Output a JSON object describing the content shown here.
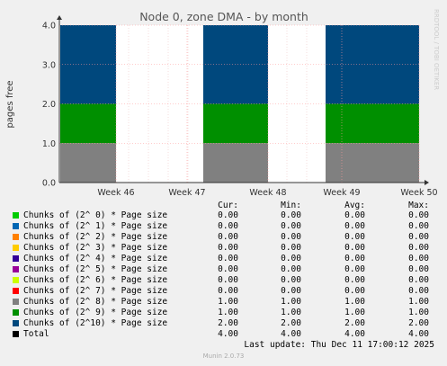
{
  "chart_data": {
    "type": "bar",
    "title": "Node 0, zone DMA - by month",
    "ylabel": "pages free",
    "ylim": [
      0,
      4
    ],
    "yticks": [
      "0.0",
      "1.0",
      "2.0",
      "3.0",
      "4.0"
    ],
    "xticks": [
      "Week 46",
      "Week 47",
      "Week 48",
      "Week 49",
      "Week 50"
    ],
    "grid": true,
    "stacked": true,
    "segments": [
      {
        "series": "Chunks of (2^ 8) * Page size",
        "values": [
          1,
          1,
          1
        ]
      },
      {
        "series": "Chunks of (2^ 9) * Page size",
        "values": [
          1,
          1,
          1
        ]
      },
      {
        "series": "Chunks of (2^10) * Page size",
        "values": [
          2,
          2,
          2
        ]
      }
    ]
  },
  "side_label": "RRDTOOL / TOBI OETIKER",
  "legend": {
    "headers": [
      "Cur:",
      "Min:",
      "Avg:",
      "Max:"
    ],
    "rows": [
      {
        "label": "Chunks of (2^ 0) * Page size",
        "color": "#00cc00",
        "cur": "0.00",
        "min": "0.00",
        "avg": "0.00",
        "max": "0.00"
      },
      {
        "label": "Chunks of (2^ 1) * Page size",
        "color": "#0066b3",
        "cur": "0.00",
        "min": "0.00",
        "avg": "0.00",
        "max": "0.00"
      },
      {
        "label": "Chunks of (2^ 2) * Page size",
        "color": "#ff8000",
        "cur": "0.00",
        "min": "0.00",
        "avg": "0.00",
        "max": "0.00"
      },
      {
        "label": "Chunks of (2^ 3) * Page size",
        "color": "#ffcc00",
        "cur": "0.00",
        "min": "0.00",
        "avg": "0.00",
        "max": "0.00"
      },
      {
        "label": "Chunks of (2^ 4) * Page size",
        "color": "#330099",
        "cur": "0.00",
        "min": "0.00",
        "avg": "0.00",
        "max": "0.00"
      },
      {
        "label": "Chunks of (2^ 5) * Page size",
        "color": "#990099",
        "cur": "0.00",
        "min": "0.00",
        "avg": "0.00",
        "max": "0.00"
      },
      {
        "label": "Chunks of (2^ 6) * Page size",
        "color": "#ccff00",
        "cur": "0.00",
        "min": "0.00",
        "avg": "0.00",
        "max": "0.00"
      },
      {
        "label": "Chunks of (2^ 7) * Page size",
        "color": "#ff0000",
        "cur": "0.00",
        "min": "0.00",
        "avg": "0.00",
        "max": "0.00"
      },
      {
        "label": "Chunks of (2^ 8) * Page size",
        "color": "#808080",
        "cur": "1.00",
        "min": "1.00",
        "avg": "1.00",
        "max": "1.00"
      },
      {
        "label": "Chunks of (2^ 9) * Page size",
        "color": "#008f00",
        "cur": "1.00",
        "min": "1.00",
        "avg": "1.00",
        "max": "1.00"
      },
      {
        "label": "Chunks of (2^10) * Page size",
        "color": "#00487d",
        "cur": "2.00",
        "min": "2.00",
        "avg": "2.00",
        "max": "2.00"
      },
      {
        "label": "Total",
        "color": "#000000",
        "cur": "4.00",
        "min": "4.00",
        "avg": "4.00",
        "max": "4.00"
      }
    ]
  },
  "last_update": "Last update: Thu Dec 11 17:00:12 2025",
  "footer": "Munin 2.0.73"
}
